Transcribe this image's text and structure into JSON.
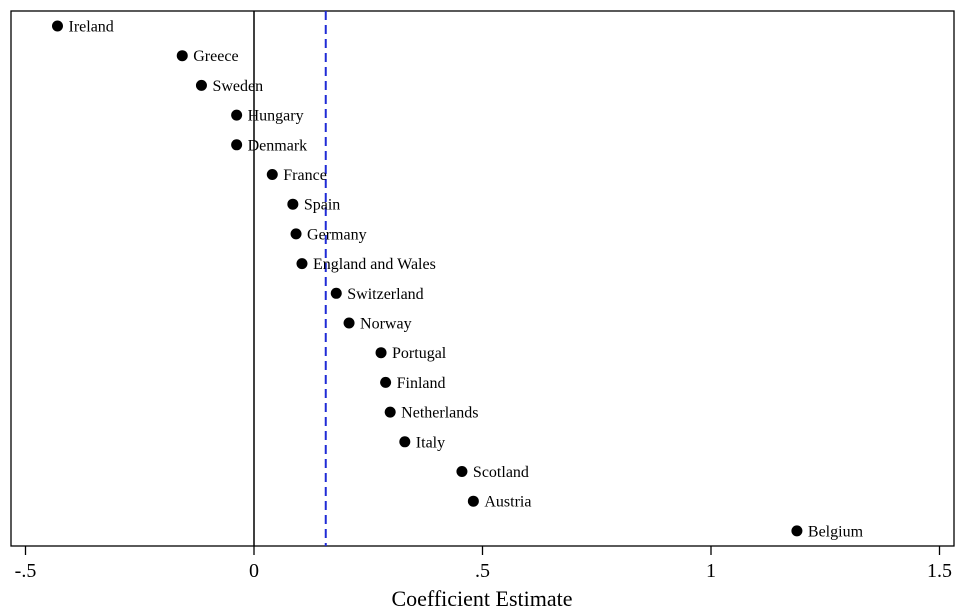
{
  "chart_data": {
    "type": "scatter",
    "title": "",
    "xlabel": "Coefficient Estimate",
    "ylabel": "",
    "xlim": [
      -0.53,
      1.53
    ],
    "xticks": [
      {
        "value": -0.5,
        "label": "-.5"
      },
      {
        "value": 0,
        "label": "0"
      },
      {
        "value": 0.5,
        "label": ".5"
      },
      {
        "value": 1,
        "label": "1"
      },
      {
        "value": 1.5,
        "label": "1.5"
      }
    ],
    "reference_lines": [
      {
        "value": 0,
        "style": "solid",
        "color": "#000000"
      },
      {
        "value": 0.157,
        "style": "dashed",
        "color": "#1f2bd6"
      }
    ],
    "grid": false,
    "legend": "none",
    "marker_color": "#000000",
    "points": [
      {
        "label": "Ireland",
        "x": -0.43
      },
      {
        "label": "Greece",
        "x": -0.157
      },
      {
        "label": "Sweden",
        "x": -0.115
      },
      {
        "label": "Hungary",
        "x": -0.038
      },
      {
        "label": "Denmark",
        "x": -0.038
      },
      {
        "label": "France",
        "x": 0.04
      },
      {
        "label": "Spain",
        "x": 0.085
      },
      {
        "label": "Germany",
        "x": 0.092
      },
      {
        "label": "England and Wales",
        "x": 0.105
      },
      {
        "label": "Switzerland",
        "x": 0.18
      },
      {
        "label": "Norway",
        "x": 0.208
      },
      {
        "label": "Portugal",
        "x": 0.278
      },
      {
        "label": "Finland",
        "x": 0.288
      },
      {
        "label": "Netherlands",
        "x": 0.298
      },
      {
        "label": "Italy",
        "x": 0.33
      },
      {
        "label": "Scotland",
        "x": 0.455
      },
      {
        "label": "Austria",
        "x": 0.48
      },
      {
        "label": "Belgium",
        "x": 1.188
      }
    ]
  }
}
